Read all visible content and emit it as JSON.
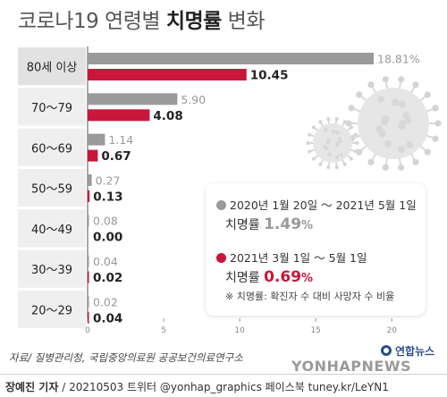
{
  "title": {
    "part1": "코로나19 연령별 ",
    "bold": "치명률",
    "part2": " 변화"
  },
  "colors": {
    "gray": "#9a9a9a",
    "red": "#c8173a",
    "label_bg": "#efefef",
    "label_bg_first": "#e2e2e2",
    "axis": "#555555"
  },
  "chart_data": {
    "type": "bar",
    "orientation": "horizontal",
    "categories": [
      "80세 이상",
      "70～79",
      "60～69",
      "50～59",
      "40～49",
      "30～39",
      "20～29"
    ],
    "series": [
      {
        "name": "2020년 1월 20일 ～ 2021년 5월 1일",
        "color": "#9a9a9a",
        "values": [
          18.81,
          5.9,
          1.14,
          0.27,
          0.08,
          0.04,
          0.02
        ],
        "labels": [
          "18.81%",
          "5.90",
          "1.14",
          "0.27",
          "0.08",
          "0.04",
          "0.02"
        ]
      },
      {
        "name": "2021년 3월 1일 ～ 5월 1일",
        "color": "#c8173a",
        "values": [
          10.45,
          4.08,
          0.67,
          0.13,
          0.0,
          0.02,
          0.04
        ],
        "labels": [
          "10.45",
          "4.08",
          "0.67",
          "0.13",
          "0.00",
          "0.02",
          "0.04"
        ]
      }
    ],
    "xlim": [
      0,
      20
    ],
    "xticks": [
      "0",
      "5",
      "10",
      "15",
      "20"
    ]
  },
  "legend": {
    "items": [
      {
        "period": "2020년 1월 20일 ～ 2021년 5월 1일",
        "label": "치명률 ",
        "value": "1.49",
        "unit": "%",
        "color": "#9a9a9a"
      },
      {
        "period": "2021년 3월 1일 ～ 5월 1일",
        "label": "치명률 ",
        "value": "0.69",
        "unit": "%",
        "color": "#c8173a"
      }
    ],
    "note": "※ 치명률: 확진자 수 대비 사망자 수 비율"
  },
  "source": "자료/ 질병관리청, 국립중앙의료원 공공보건의료연구소",
  "credit": {
    "author": "장예진 기자",
    "rest": " / 20210503 트위터 @yonhap_graphics  페이스북 tuney.kr/LeYN1"
  },
  "logo": {
    "ko": "연합뉴스",
    "en": "YONHAPNEWS"
  }
}
